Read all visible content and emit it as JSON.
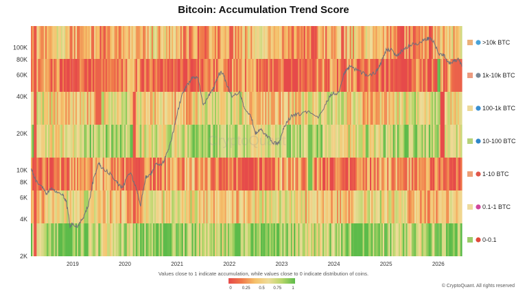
{
  "chart_data": {
    "type": "heatmap",
    "title": "Bitcoin: Accumulation Trend Score",
    "y_scale": "log",
    "ylim": [
      2000,
      150000
    ],
    "y_ticks": [
      "2K",
      "4K",
      "6K",
      "8K",
      "10K",
      "20K",
      "40K",
      "60K",
      "80K",
      "100K"
    ],
    "y_tick_values": [
      2000,
      4000,
      6000,
      8000,
      10000,
      20000,
      40000,
      60000,
      80000,
      100000
    ],
    "x_ticks": [
      "2019",
      "2020",
      "2021",
      "2022",
      "2023",
      "2024",
      "2025",
      "2026"
    ],
    "x_tick_values": [
      2019.0,
      2020.0,
      2021.0,
      2022.0,
      2023.0,
      2024.0,
      2025.0,
      2026.0
    ],
    "xlim": [
      2018.2,
      2026.45
    ],
    "rows": [
      {
        "name": ">10k BTC",
        "icon": "whale-icon",
        "swatch": "#ebb07a",
        "base": 0.35
      },
      {
        "name": "1k-10k BTC",
        "icon": "shark-icon",
        "swatch": "#ec9b80",
        "base": 0.15
      },
      {
        "name": "100-1k BTC",
        "icon": "dolphin-icon",
        "swatch": "#eed99a",
        "base": 0.55
      },
      {
        "name": "10-100 BTC",
        "icon": "fish-icon",
        "swatch": "#b5d27a",
        "base": 0.72
      },
      {
        "name": "1-10 BTC",
        "icon": "crab-icon",
        "swatch": "#eea077",
        "base": 0.25
      },
      {
        "name": "0.1-1 BTC",
        "icon": "octopus-icon",
        "swatch": "#eedb9e",
        "base": 0.5
      },
      {
        "name": "0-0.1",
        "icon": "shrimp-icon",
        "swatch": "#9ccc6a",
        "base": 0.82
      }
    ],
    "price_series": {
      "x": [
        2018.2,
        2018.3,
        2018.4,
        2018.5,
        2018.6,
        2018.7,
        2018.8,
        2018.88,
        2018.95,
        2019.0,
        2019.1,
        2019.2,
        2019.3,
        2019.4,
        2019.5,
        2019.55,
        2019.7,
        2019.85,
        2019.95,
        2020.1,
        2020.2,
        2020.3,
        2020.4,
        2020.5,
        2020.6,
        2020.7,
        2020.8,
        2020.9,
        2021.0,
        2021.1,
        2021.2,
        2021.3,
        2021.4,
        2021.5,
        2021.6,
        2021.7,
        2021.8,
        2021.87,
        2021.95,
        2022.05,
        2022.2,
        2022.3,
        2022.4,
        2022.5,
        2022.6,
        2022.7,
        2022.85,
        2022.95,
        2023.05,
        2023.2,
        2023.3,
        2023.5,
        2023.7,
        2023.85,
        2023.95,
        2024.1,
        2024.2,
        2024.3,
        2024.5,
        2024.65,
        2024.8,
        2024.9,
        2025.0,
        2025.1,
        2025.2,
        2025.3,
        2025.45,
        2025.6,
        2025.75,
        2025.85,
        2025.92,
        2026.0,
        2026.1,
        2026.2,
        2026.3,
        2026.4,
        2026.45
      ],
      "y": [
        10500,
        8200,
        7500,
        6500,
        7200,
        6500,
        6400,
        5500,
        3500,
        3700,
        3500,
        4100,
        5200,
        8500,
        11500,
        10500,
        9500,
        8000,
        7200,
        9800,
        7500,
        5200,
        8800,
        9300,
        11500,
        10800,
        13500,
        18500,
        29000,
        42000,
        50000,
        58000,
        56000,
        34000,
        40000,
        47000,
        61000,
        63000,
        50000,
        40000,
        43000,
        31000,
        29000,
        20000,
        22000,
        19500,
        16800,
        16500,
        23000,
        28000,
        28500,
        30000,
        26500,
        35000,
        42000,
        43000,
        62000,
        70000,
        64000,
        59000,
        63000,
        75000,
        95000,
        96000,
        85000,
        94000,
        105000,
        108000,
        117000,
        120000,
        110000,
        90000,
        88000,
        75000,
        78000,
        80000,
        70000
      ]
    },
    "special_bands": [
      {
        "x0": 2018.25,
        "x1": 2018.32,
        "rows": [
          0,
          1,
          2,
          3,
          4,
          5,
          6
        ],
        "value": 0.05
      },
      {
        "x0": 2018.75,
        "x1": 2018.8,
        "rows": [
          1
        ],
        "value": 0.0
      },
      {
        "x0": 2019.45,
        "x1": 2019.55,
        "rows": [
          1,
          2
        ],
        "value": 0.1
      },
      {
        "x0": 2020.15,
        "x1": 2020.2,
        "rows": [
          2,
          3,
          4,
          5
        ],
        "value": 0.05
      },
      {
        "x0": 2020.96,
        "x1": 2021.0,
        "rows": [
          1
        ],
        "value": 0.1
      },
      {
        "x0": 2021.3,
        "x1": 2021.36,
        "rows": [
          1
        ],
        "value": 0.05
      },
      {
        "x0": 2022.0,
        "x1": 2022.06,
        "rows": [
          0,
          1
        ],
        "value": 0.05
      },
      {
        "x0": 2022.85,
        "x1": 2022.92,
        "rows": [
          1
        ],
        "value": 0.05
      },
      {
        "x0": 2023.5,
        "x1": 2023.58,
        "rows": [
          3,
          4
        ],
        "value": 0.95
      },
      {
        "x0": 2024.15,
        "x1": 2024.2,
        "rows": [
          0,
          1
        ],
        "value": 0.05
      },
      {
        "x0": 2024.6,
        "x1": 2024.65,
        "rows": [
          3
        ],
        "value": 0.95
      },
      {
        "x0": 2025.2,
        "x1": 2025.26,
        "rows": [
          0,
          1
        ],
        "value": 0.05
      },
      {
        "x0": 2025.82,
        "x1": 2025.88,
        "rows": [
          0,
          1
        ],
        "value": 0.0
      },
      {
        "x0": 2025.97,
        "x1": 2026.05,
        "rows": [
          1
        ],
        "value": 1.0
      },
      {
        "x0": 2026.05,
        "x1": 2026.12,
        "rows": [
          2,
          3
        ],
        "value": 0.0
      },
      {
        "x0": 2026.08,
        "x1": 2026.12,
        "rows": [
          1
        ],
        "value": 0.0
      },
      {
        "x0": 2026.3,
        "x1": 2026.45,
        "rows": [
          1
        ],
        "value": 0.1
      }
    ],
    "colorscale": {
      "stops": [
        "#e64a4a",
        "#f07a4a",
        "#f5c16a",
        "#eedc9a",
        "#b8d66a",
        "#5dbb4a"
      ],
      "tick_labels": [
        "0",
        "0.25",
        "0.5",
        "0.75",
        "1"
      ]
    },
    "footnote": "Values close to 1 indicate accumulation, while values close to 0 indicate distribution of coins.",
    "watermark": "CryptoQuant",
    "credit": "© CryptoQuant. All rights reserved"
  }
}
